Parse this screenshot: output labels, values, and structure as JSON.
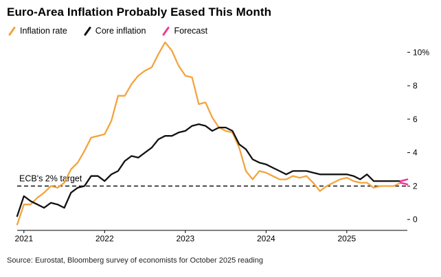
{
  "header": {
    "title": "Euro-Area Inflation Probably Eased This Month"
  },
  "legend": {
    "items": [
      {
        "label": "Inflation rate",
        "color": "#F3A43B"
      },
      {
        "label": "Core inflation",
        "color": "#111111"
      },
      {
        "label": "Forecast",
        "color": "#F23A96"
      }
    ]
  },
  "chart_data": {
    "type": "line",
    "title": "Euro-Area Inflation Probably Eased This Month",
    "x_unit": "month",
    "x_note": "Monthly year-over-year % values from Dec 2020 through Sep 2025, plus Oct 2025 forecast segment",
    "x_index_max": 58,
    "x_tick_indices": [
      1,
      13,
      25,
      37,
      49
    ],
    "x_tick_labels": [
      "2021",
      "2022",
      "2023",
      "2024",
      "2025"
    ],
    "y_ticks": [
      0,
      2,
      4,
      6,
      8,
      10
    ],
    "y_tick_labels": [
      "0",
      "2",
      "4",
      "6",
      "8",
      "10%"
    ],
    "ylim": [
      -0.65,
      10.75
    ],
    "grid": false,
    "legend_position": "top-left",
    "target_line": {
      "value": 2,
      "label": "ECB's 2% target",
      "style": "dashed",
      "color": "#111111"
    },
    "series": [
      {
        "name": "Inflation rate",
        "color": "#F3A43B",
        "start_index": 0,
        "values": [
          -0.3,
          0.9,
          0.9,
          1.3,
          1.6,
          2.0,
          1.9,
          2.2,
          3.0,
          3.4,
          4.1,
          4.9,
          5.0,
          5.1,
          5.9,
          7.4,
          7.4,
          8.1,
          8.6,
          8.9,
          9.1,
          9.9,
          10.6,
          10.1,
          9.2,
          8.6,
          8.5,
          6.9,
          7.0,
          6.1,
          5.5,
          5.3,
          5.2,
          4.3,
          2.9,
          2.4,
          2.9,
          2.8,
          2.6,
          2.4,
          2.4,
          2.6,
          2.5,
          2.6,
          2.2,
          1.7,
          2.0,
          2.2,
          2.4,
          2.5,
          2.3,
          2.2,
          2.2,
          1.9,
          2.0,
          2.0,
          2.0,
          2.2
        ]
      },
      {
        "name": "Core inflation",
        "color": "#111111",
        "start_index": 0,
        "values": [
          0.2,
          1.4,
          1.1,
          0.9,
          0.7,
          1.0,
          0.9,
          0.7,
          1.6,
          1.9,
          2.0,
          2.6,
          2.6,
          2.3,
          2.7,
          2.9,
          3.5,
          3.8,
          3.7,
          4.0,
          4.3,
          4.8,
          5.0,
          5.0,
          5.2,
          5.3,
          5.6,
          5.7,
          5.6,
          5.3,
          5.5,
          5.5,
          5.3,
          4.5,
          4.2,
          3.6,
          3.4,
          3.3,
          3.1,
          2.9,
          2.7,
          2.9,
          2.9,
          2.9,
          2.8,
          2.7,
          2.7,
          2.7,
          2.7,
          2.7,
          2.6,
          2.4,
          2.7,
          2.3,
          2.3,
          2.3,
          2.3,
          2.3
        ]
      },
      {
        "name": "Forecast (inflation rate, Oct 2025)",
        "color": "#F23A96",
        "start_index": 57,
        "values": [
          2.2,
          2.1
        ]
      },
      {
        "name": "Forecast (core inflation, Oct 2025)",
        "color": "#F23A96",
        "start_index": 57,
        "values": [
          2.3,
          2.4
        ]
      }
    ]
  },
  "footer": {
    "source": "Source: Eurostat, Bloomberg survey of economists for October 2025 reading"
  }
}
